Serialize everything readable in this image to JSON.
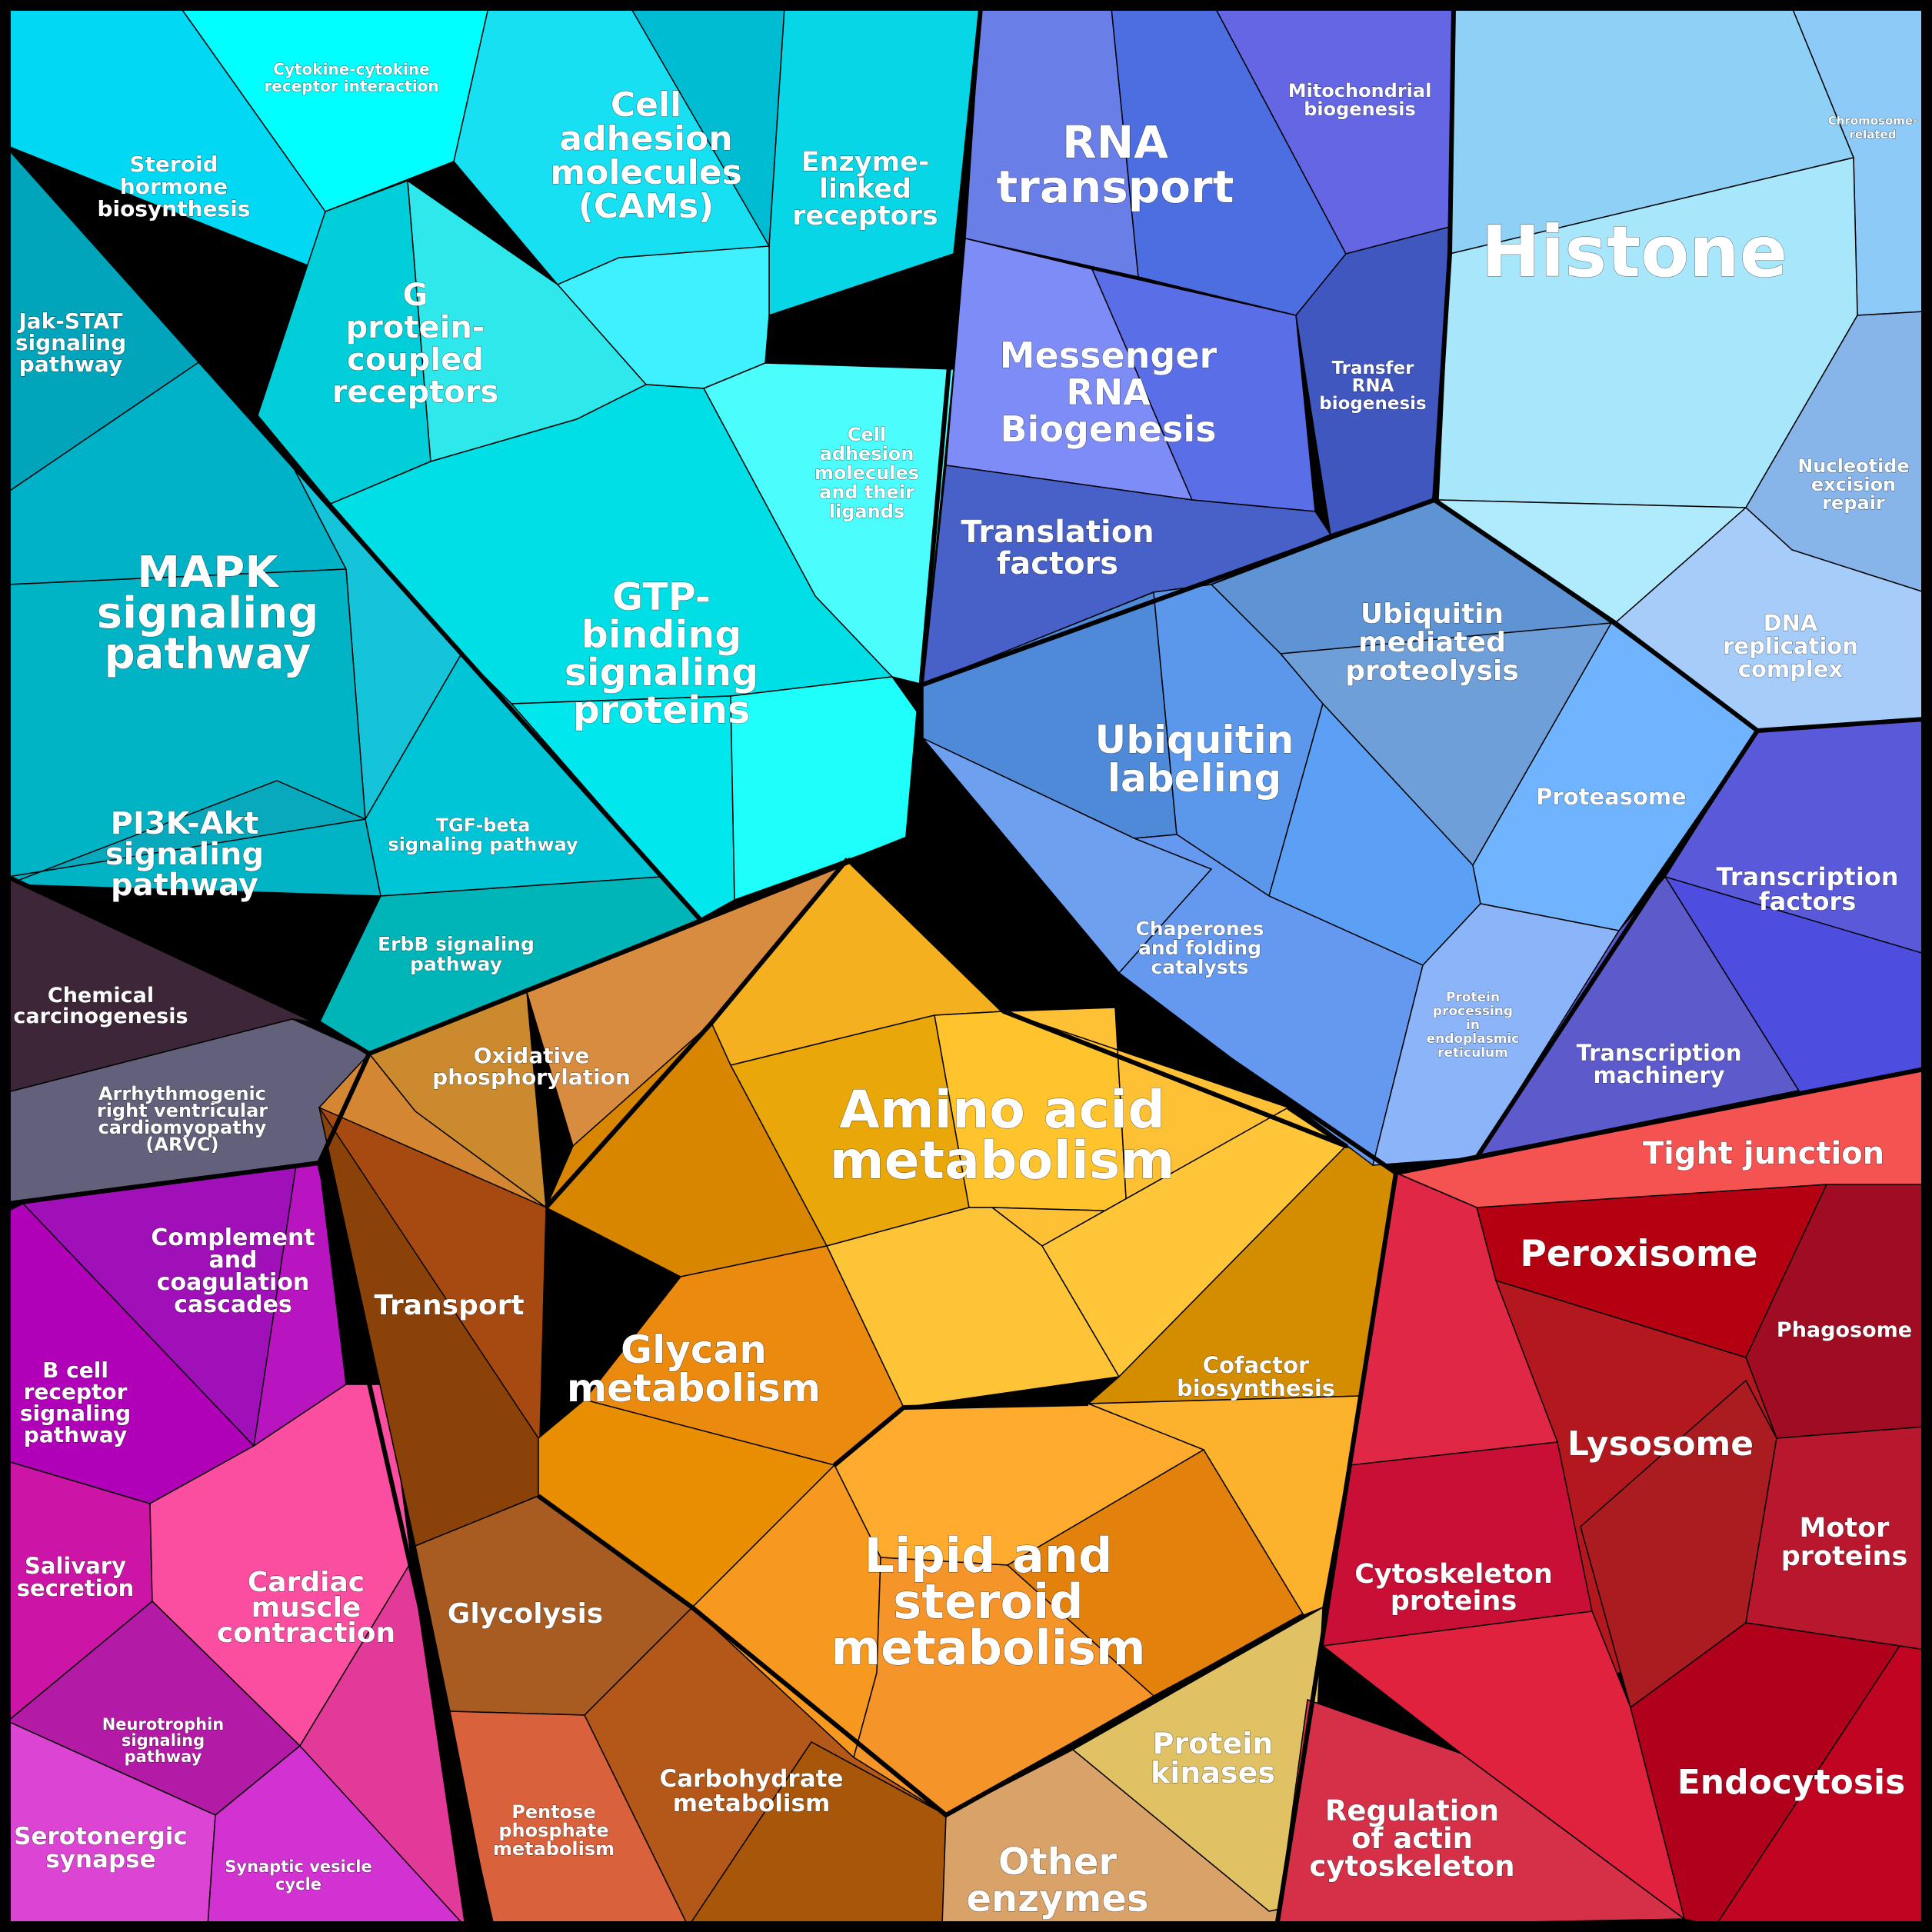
{
  "labels": {
    "histone": "Histone",
    "chromosome_related": [
      "Chromosome-",
      "related"
    ],
    "nucleotide_excision_repair": [
      "Nucleotide",
      "excision",
      "repair"
    ],
    "dna_replication_complex": [
      "DNA",
      "replication",
      "complex"
    ],
    "transcription_factors": [
      "Transcription",
      "factors"
    ],
    "transcription_machinery": [
      "Transcription",
      "machinery"
    ],
    "rna_transport": [
      "RNA",
      "transport"
    ],
    "mitochondrial_biogenesis": [
      "Mitochondrial",
      "biogenesis"
    ],
    "messenger_rna_biogenesis": [
      "Messenger",
      "RNA",
      "Biogenesis"
    ],
    "transfer_rna_biogenesis": [
      "Transfer",
      "RNA",
      "biogenesis"
    ],
    "translation_factors": [
      "Translation",
      "factors"
    ],
    "ubiquitin_mediated_proteolysis": [
      "Ubiquitin",
      "mediated",
      "proteolysis"
    ],
    "ubiquitin_labeling": [
      "Ubiquitin",
      "labeling"
    ],
    "proteasome": "Proteasome",
    "chaperones": [
      "Chaperones",
      "and folding",
      "catalysts"
    ],
    "protein_processing_er": [
      "Protein",
      "processing",
      "in",
      "endoplasmic",
      "reticulum"
    ],
    "cytokine_receptor": [
      "Cytokine-cytokine",
      "receptor interaction"
    ],
    "steroid_hormone": [
      "Steroid",
      "hormone",
      "biosynthesis"
    ],
    "cell_adhesion_molecules": [
      "Cell",
      "adhesion",
      "molecules",
      "(CAMs)"
    ],
    "enzyme_linked_receptors": [
      "Enzyme-",
      "linked",
      "receptors"
    ],
    "jak_stat": [
      "Jak-STAT",
      "signaling",
      "pathway"
    ],
    "g_protein_receptors": [
      "G",
      "protein-",
      "coupled",
      "receptors"
    ],
    "cell_adhesion_ligands": [
      "Cell",
      "adhesion",
      "molecules",
      "and their",
      "ligands"
    ],
    "mapk": [
      "MAPK",
      "signaling",
      "pathway"
    ],
    "gtp_binding": [
      "GTP-",
      "binding",
      "signaling",
      "proteins"
    ],
    "pi3k_akt": [
      "PI3K-Akt",
      "signaling",
      "pathway"
    ],
    "tgf_beta": [
      "TGF-beta",
      "signaling pathway"
    ],
    "erbb": [
      "ErbB signaling",
      "pathway"
    ],
    "chemical_carcinogenesis": [
      "Chemical",
      "carcinogenesis"
    ],
    "arvc": [
      "Arrhythmogenic",
      "right ventricular",
      "cardiomyopathy",
      "(ARVC)"
    ],
    "complement": [
      "Complement",
      "and",
      "coagulation",
      "cascades"
    ],
    "b_cell_receptor": [
      "B cell",
      "receptor",
      "signaling",
      "pathway"
    ],
    "salivary_secretion": [
      "Salivary",
      "secretion"
    ],
    "cardiac_muscle": [
      "Cardiac",
      "muscle",
      "contraction"
    ],
    "neurotrophin": [
      "Neurotrophin",
      "signaling",
      "pathway"
    ],
    "serotonergic_synapse": [
      "Serotonergic",
      "synapse"
    ],
    "synaptic_vesicle_cycle": [
      "Synaptic vesicle",
      "cycle"
    ],
    "oxidative_phosphorylation": [
      "Oxidative",
      "phosphorylation"
    ],
    "amino_acid_metabolism": [
      "Amino acid",
      "metabolism"
    ],
    "transport": "Transport",
    "glycan_metabolism": [
      "Glycan",
      "metabolism"
    ],
    "cofactor_biosynthesis": [
      "Cofactor",
      "biosynthesis"
    ],
    "glycolysis": "Glycolysis",
    "lipid_steroid_metabolism": [
      "Lipid and",
      "steroid",
      "metabolism"
    ],
    "pentose_phosphate": [
      "Pentose",
      "phosphate",
      "metabolism"
    ],
    "carbohydrate_metabolism": [
      "Carbohydrate",
      "metabolism"
    ],
    "protein_kinases": [
      "Protein",
      "kinases"
    ],
    "other_enzymes": [
      "Other",
      "enzymes"
    ],
    "tight_junction": "Tight junction",
    "peroxisome": "Peroxisome",
    "phagosome": "Phagosome",
    "lysosome": "Lysosome",
    "motor_proteins": [
      "Motor",
      "proteins"
    ],
    "cytoskeleton_proteins": [
      "Cytoskeleton",
      "proteins"
    ],
    "endocytosis": "Endocytosis",
    "regulation_actin": [
      "Regulation",
      "of actin",
      "cytoskeleton"
    ]
  },
  "colors": {
    "signaling_cyan": "#00e5ee",
    "gene_info_blue": "#5b8def",
    "histone_light_blue": "#8ecdf8",
    "rna_indigo": "#5a6ee8",
    "metabolism_orange": "#f2a81d",
    "cellular_processes_red": "#d0203c",
    "organismal_magenta": "#c21cbf",
    "disease_dark": "#3c2637",
    "arvc_gray": "#62607a"
  }
}
